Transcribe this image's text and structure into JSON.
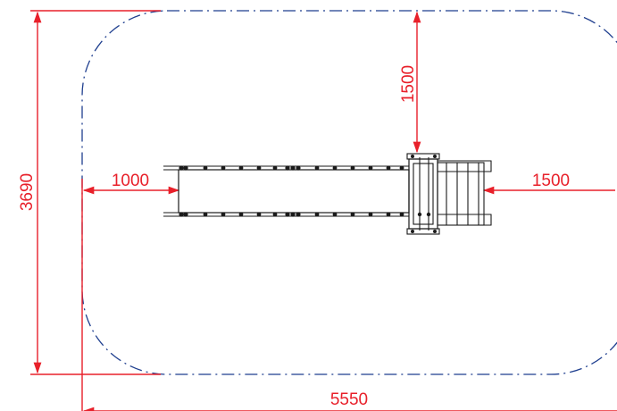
{
  "colors": {
    "dimension": "#e8202a",
    "safety_zone": "#1f3f8f",
    "equipment": "#1a1a1a",
    "background": "#ffffff"
  },
  "dimensions": {
    "overall_width": "5550",
    "overall_depth": "3690",
    "clearance_top": "1500",
    "clearance_left": "1000",
    "clearance_right": "1500"
  },
  "elements": {
    "safety_zone": "dash-dot rounded rectangle",
    "equipment": "conveyor slide with platform"
  }
}
